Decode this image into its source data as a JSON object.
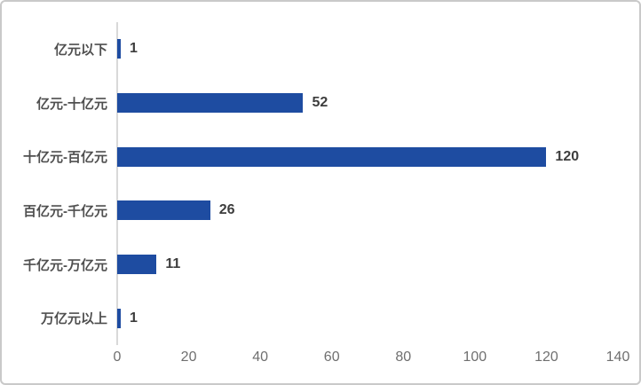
{
  "chart_data": {
    "type": "bar",
    "orientation": "horizontal",
    "title": "",
    "xlabel": "",
    "ylabel": "",
    "categories": [
      "亿元以下",
      "亿元-十亿元",
      "十亿元-百亿元",
      "百亿元-千亿元",
      "千亿元-万亿元",
      "万亿元以上"
    ],
    "values": [
      1,
      52,
      120,
      26,
      11,
      1
    ],
    "data_labels": [
      "1",
      "52",
      "120",
      "26",
      "11",
      "1"
    ],
    "xlim": [
      0,
      140
    ],
    "xticks": [
      0,
      20,
      40,
      60,
      80,
      100,
      120,
      140
    ],
    "grid": false,
    "legend": "none",
    "bar_color": "#1e4ca1"
  },
  "colors": {
    "bar": "#1e4ca1",
    "category_label": "#4f4f4f",
    "value_label": "#3d3d3d",
    "tick_label": "#6f6f6f",
    "axis_line": "#d9d9d9",
    "panel_border": "#c9c9c9",
    "background": "#ffffff"
  }
}
